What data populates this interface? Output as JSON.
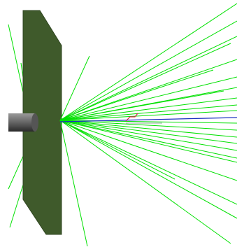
{
  "scene": {
    "background_color": "#ffffff",
    "plate": {
      "face_color": "#3f5a2b",
      "edge_color": "#2f4520"
    },
    "cylinder": {
      "dark_color": "#2a2a2a",
      "mid_color": "#6a6a6a",
      "light_color": "#9a9a9a"
    },
    "rays": {
      "color": "#00e000",
      "count": 30
    },
    "axis": {
      "color": "#1a2fbf"
    },
    "marker": {
      "color": "#e0204a"
    },
    "sensor_line": {
      "color": "#9aa8a0"
    }
  }
}
